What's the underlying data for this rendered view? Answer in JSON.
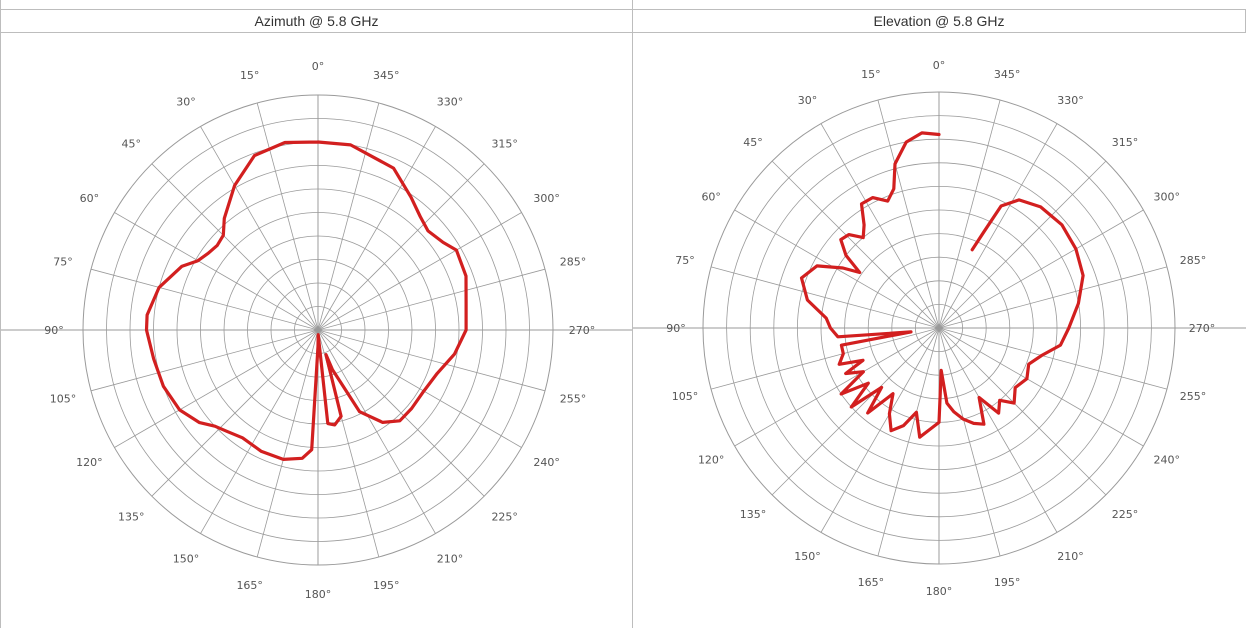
{
  "colors": {
    "grid": "#9a9a9a",
    "trace": "#d21f1f",
    "border": "#bdbdbd"
  },
  "chart_data": [
    {
      "type": "polar",
      "title": "Azimuth @ 5.8 GHz",
      "angle_direction": "counterclockwise",
      "angle_zero": "top",
      "angle_labels": [
        "0°",
        "15°",
        "30°",
        "45°",
        "60°",
        "75°",
        "90°",
        "105°",
        "120°",
        "135°",
        "150°",
        "165°",
        "180°",
        "195°",
        "210°",
        "225°",
        "240°",
        "255°",
        "270°",
        "285°",
        "300°",
        "315°",
        "330°",
        "345°"
      ],
      "rings": 10,
      "r_range": [
        0,
        1
      ],
      "series": [
        {
          "points": [
            [
              0,
              0.8
            ],
            [
              10,
              0.81
            ],
            [
              20,
              0.79
            ],
            [
              30,
              0.71
            ],
            [
              40,
              0.62
            ],
            [
              45,
              0.57
            ],
            [
              50,
              0.56
            ],
            [
              55,
              0.57
            ],
            [
              60,
              0.59
            ],
            [
              65,
              0.64
            ],
            [
              75,
              0.7
            ],
            [
              85,
              0.73
            ],
            [
              90,
              0.73
            ],
            [
              100,
              0.71
            ],
            [
              110,
              0.7
            ],
            [
              120,
              0.68
            ],
            [
              128,
              0.64
            ],
            [
              133,
              0.6
            ],
            [
              138,
              0.58
            ],
            [
              145,
              0.56
            ],
            [
              155,
              0.57
            ],
            [
              165,
              0.57
            ],
            [
              173,
              0.55
            ],
            [
              177,
              0.51
            ],
            [
              180,
              0.07
            ],
            [
              182,
              0.02
            ],
            [
              186,
              0.4
            ],
            [
              190,
              0.41
            ],
            [
              195,
              0.38
            ],
            [
              198,
              0.11
            ],
            [
              200,
              0.18
            ],
            [
              207,
              0.39
            ],
            [
              215,
              0.48
            ],
            [
              222,
              0.52
            ],
            [
              230,
              0.52
            ],
            [
              240,
              0.52
            ],
            [
              250,
              0.54
            ],
            [
              260,
              0.59
            ],
            [
              270,
              0.63
            ],
            [
              280,
              0.64
            ],
            [
              290,
              0.67
            ],
            [
              300,
              0.68
            ],
            [
              305,
              0.65
            ],
            [
              312,
              0.63
            ],
            [
              318,
              0.65
            ],
            [
              325,
              0.69
            ],
            [
              335,
              0.76
            ],
            [
              350,
              0.8
            ],
            [
              360,
              0.8
            ]
          ]
        }
      ]
    },
    {
      "type": "polar",
      "title": "Elevation @ 5.8 GHz",
      "angle_direction": "counterclockwise",
      "angle_zero": "top",
      "angle_labels": [
        "0°",
        "15°",
        "30°",
        "45°",
        "60°",
        "75°",
        "90°",
        "105°",
        "120°",
        "135°",
        "150°",
        "165°",
        "180°",
        "195°",
        "210°",
        "225°",
        "240°",
        "255°",
        "270°",
        "285°",
        "300°",
        "315°",
        "330°",
        "345°"
      ],
      "rings": 10,
      "r_range": [
        0,
        1
      ],
      "series": [
        {
          "points": [
            [
              0,
              0.82
            ],
            [
              5,
              0.83
            ],
            [
              10,
              0.8
            ],
            [
              15,
              0.72
            ],
            [
              18,
              0.62
            ],
            [
              22,
              0.58
            ],
            [
              27,
              0.62
            ],
            [
              32,
              0.62
            ],
            [
              36,
              0.54
            ],
            [
              40,
              0.5
            ],
            [
              44,
              0.55
            ],
            [
              48,
              0.56
            ],
            [
              52,
              0.5
            ],
            [
              55,
              0.41
            ],
            [
              58,
              0.48
            ],
            [
              63,
              0.58
            ],
            [
              70,
              0.62
            ],
            [
              78,
              0.57
            ],
            [
              85,
              0.48
            ],
            [
              90,
              0.46
            ],
            [
              95,
              0.43
            ],
            [
              98,
              0.12
            ],
            [
              100,
              0.42
            ],
            [
              105,
              0.42
            ],
            [
              110,
              0.45
            ],
            [
              113,
              0.35
            ],
            [
              116,
              0.44
            ],
            [
              120,
              0.37
            ],
            [
              124,
              0.5
            ],
            [
              128,
              0.38
            ],
            [
              132,
              0.5
            ],
            [
              136,
              0.35
            ],
            [
              140,
              0.47
            ],
            [
              145,
              0.34
            ],
            [
              150,
              0.42
            ],
            [
              155,
              0.48
            ],
            [
              160,
              0.44
            ],
            [
              165,
              0.37
            ],
            [
              170,
              0.47
            ],
            [
              175,
              0.43
            ],
            [
              180,
              0.4
            ],
            [
              183,
              0.18
            ],
            [
              186,
              0.32
            ],
            [
              190,
              0.36
            ],
            [
              195,
              0.4
            ],
            [
              200,
              0.43
            ],
            [
              205,
              0.45
            ],
            [
              210,
              0.34
            ],
            [
              215,
              0.44
            ],
            [
              220,
              0.4
            ],
            [
              225,
              0.45
            ],
            [
              232,
              0.41
            ],
            [
              240,
              0.43
            ],
            [
              248,
              0.41
            ],
            [
              255,
              0.45
            ],
            [
              262,
              0.52
            ],
            [
              270,
              0.55
            ],
            [
              280,
              0.6
            ],
            [
              290,
              0.65
            ],
            [
              300,
              0.67
            ],
            [
              310,
              0.68
            ],
            [
              320,
              0.67
            ],
            [
              328,
              0.64
            ],
            [
              333,
              0.58
            ],
            [
              335,
              0.45
            ],
            [
              337,
              0.36
            ]
          ]
        }
      ]
    }
  ]
}
